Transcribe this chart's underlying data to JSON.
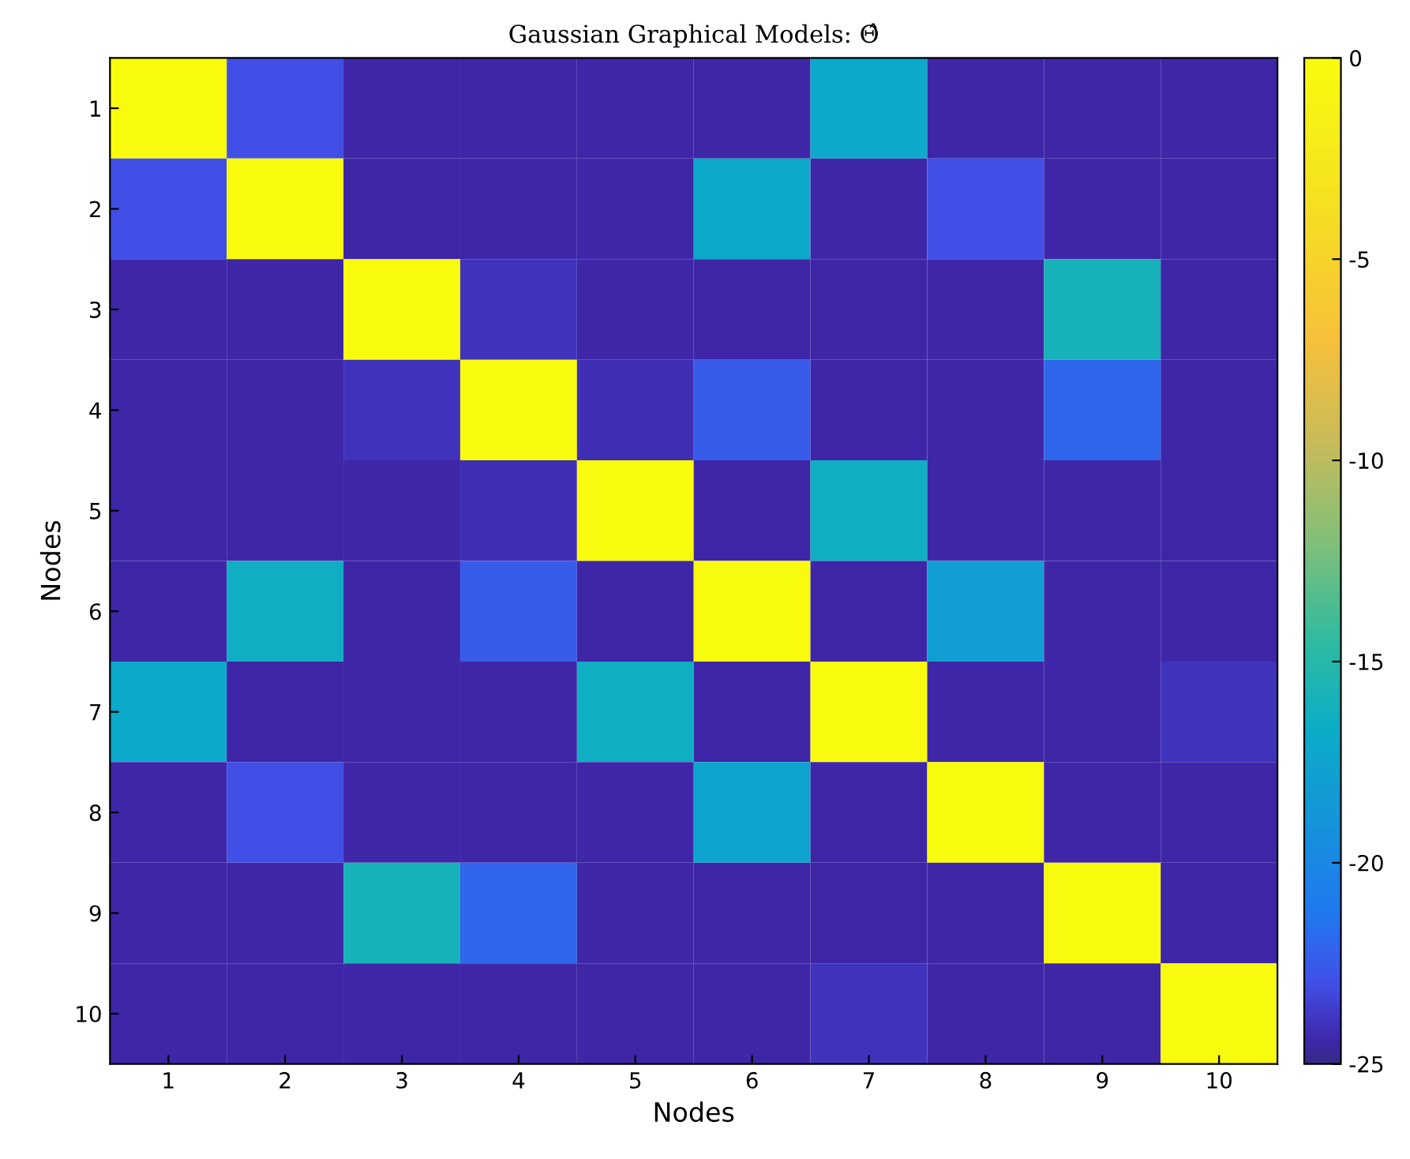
{
  "chart_data": {
    "type": "heatmap",
    "title": "Gaussian Graphical Models: Θ̂",
    "xlabel": "Nodes",
    "ylabel": "Nodes",
    "categories": [
      "1",
      "2",
      "3",
      "4",
      "5",
      "6",
      "7",
      "8",
      "9",
      "10"
    ],
    "y_categories": [
      "1",
      "2",
      "3",
      "4",
      "5",
      "6",
      "7",
      "8",
      "9",
      "10"
    ],
    "cells": [
      [
        0,
        -23,
        -24.5,
        -24.5,
        -24.5,
        -24.5,
        -17,
        -24.5,
        -24.5,
        -24.5
      ],
      [
        -23,
        0,
        -24.5,
        -24.5,
        -24.5,
        -17,
        -24.5,
        -23,
        -24.5,
        -24.5
      ],
      [
        -24.5,
        -24.5,
        0,
        -24,
        -24.5,
        -24.5,
        -24.5,
        -24.5,
        -16,
        -24.5
      ],
      [
        -24.5,
        -24.5,
        -24,
        0,
        -24.2,
        -22.5,
        -24.5,
        -24.5,
        -22,
        -24.5
      ],
      [
        -24.5,
        -24.5,
        -24.5,
        -24.2,
        0,
        -24.5,
        -16.5,
        -24.5,
        -24.5,
        -24.5
      ],
      [
        -24.5,
        -16.5,
        -24.5,
        -22.5,
        -24.5,
        0,
        -24.5,
        -18,
        -24.5,
        -24.5
      ],
      [
        -17,
        -24.5,
        -24.5,
        -24.5,
        -16.5,
        -24.5,
        0,
        -24.5,
        -24.5,
        -24
      ],
      [
        -24.5,
        -23,
        -24.5,
        -24.5,
        -24.5,
        -17.5,
        -24.5,
        0,
        -24.5,
        -24.5
      ],
      [
        -24.5,
        -24.5,
        -16,
        -22,
        -24.5,
        -24.5,
        -24.5,
        -24.5,
        0,
        -24.5
      ],
      [
        -24.5,
        -24.5,
        -24.5,
        -24.5,
        -24.5,
        -24.5,
        -24,
        -24.5,
        -24.5,
        0
      ]
    ],
    "clim": [
      -25,
      0
    ],
    "cticks": [
      -25,
      -20,
      -15,
      -10,
      -5,
      0
    ],
    "grid": false
  }
}
